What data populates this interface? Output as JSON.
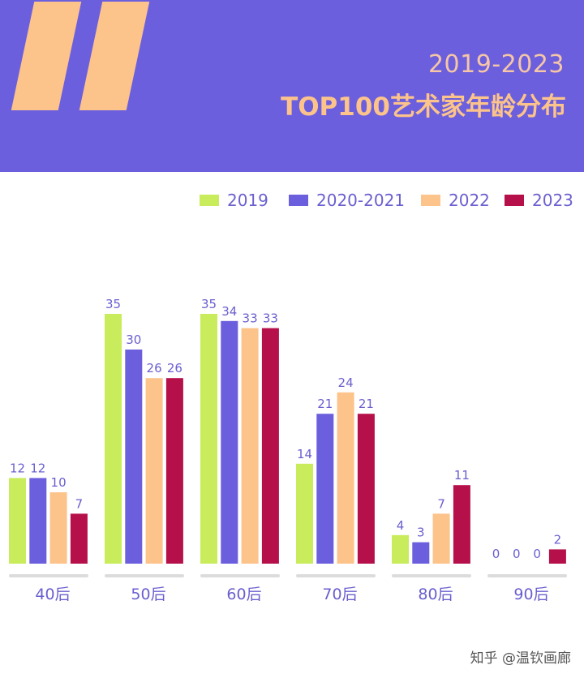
{
  "header": {
    "subtitle": "2019-2023",
    "title": "TOP100艺术家年龄分布"
  },
  "watermark": "知乎 @温钦画廊",
  "chart_data": {
    "type": "bar",
    "title": "TOP100艺术家年龄分布",
    "subtitle": "2019-2023",
    "categories": [
      "40后",
      "50后",
      "60后",
      "70后",
      "80后",
      "90后"
    ],
    "series": [
      {
        "name": "2019",
        "color": "#c8ec5c",
        "values": [
          12,
          35,
          35,
          14,
          4,
          0
        ]
      },
      {
        "name": "2020-2021",
        "color": "#6b5fdd",
        "values": [
          12,
          30,
          34,
          21,
          3,
          0
        ]
      },
      {
        "name": "2022",
        "color": "#fcc38b",
        "values": [
          10,
          26,
          33,
          24,
          7,
          0
        ]
      },
      {
        "name": "2023",
        "color": "#b5104a",
        "values": [
          7,
          26,
          33,
          21,
          11,
          2
        ]
      }
    ],
    "ylim": [
      0,
      35
    ],
    "grid": false,
    "legend": "top-right",
    "xlabel": "",
    "ylabel": ""
  }
}
